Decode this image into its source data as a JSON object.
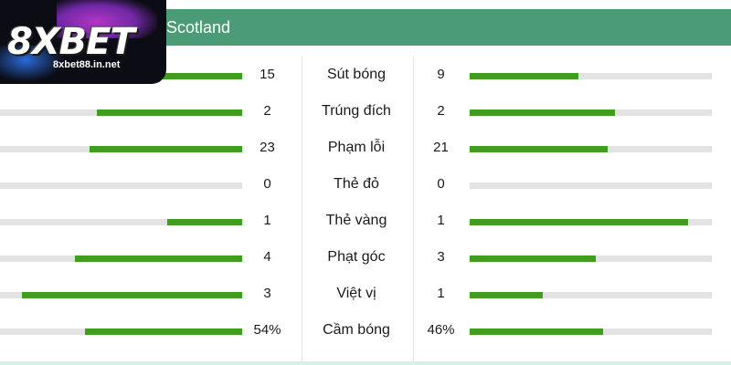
{
  "header": {
    "team_name": "Scotland"
  },
  "logo": {
    "brand": "8XBET",
    "site": "8xbet88.in.net"
  },
  "stats": [
    {
      "label": "Sút bóng",
      "left": "15",
      "right": "9",
      "left_fill": 0.4,
      "right_fill": 0.45
    },
    {
      "label": "Trúng đích",
      "left": "2",
      "right": "2",
      "left_fill": 0.6,
      "right_fill": 0.6
    },
    {
      "label": "Phạm lỗi",
      "left": "23",
      "right": "21",
      "left_fill": 0.63,
      "right_fill": 0.57
    },
    {
      "label": "Thẻ đỏ",
      "left": "0",
      "right": "0",
      "left_fill": 0.0,
      "right_fill": 0.0
    },
    {
      "label": "Thẻ vàng",
      "left": "1",
      "right": "1",
      "left_fill": 0.31,
      "right_fill": 0.9
    },
    {
      "label": "Phạt góc",
      "left": "4",
      "right": "3",
      "left_fill": 0.69,
      "right_fill": 0.52
    },
    {
      "label": "Việt vị",
      "left": "3",
      "right": "1",
      "left_fill": 0.91,
      "right_fill": 0.3
    },
    {
      "label": "Cầm bóng",
      "left": "54%",
      "right": "46%",
      "left_fill": 0.65,
      "right_fill": 0.55
    }
  ],
  "colors": {
    "header": "#4b9c76",
    "bar_fill": "#3f9f1a",
    "bar_track": "#e3e3e3"
  }
}
